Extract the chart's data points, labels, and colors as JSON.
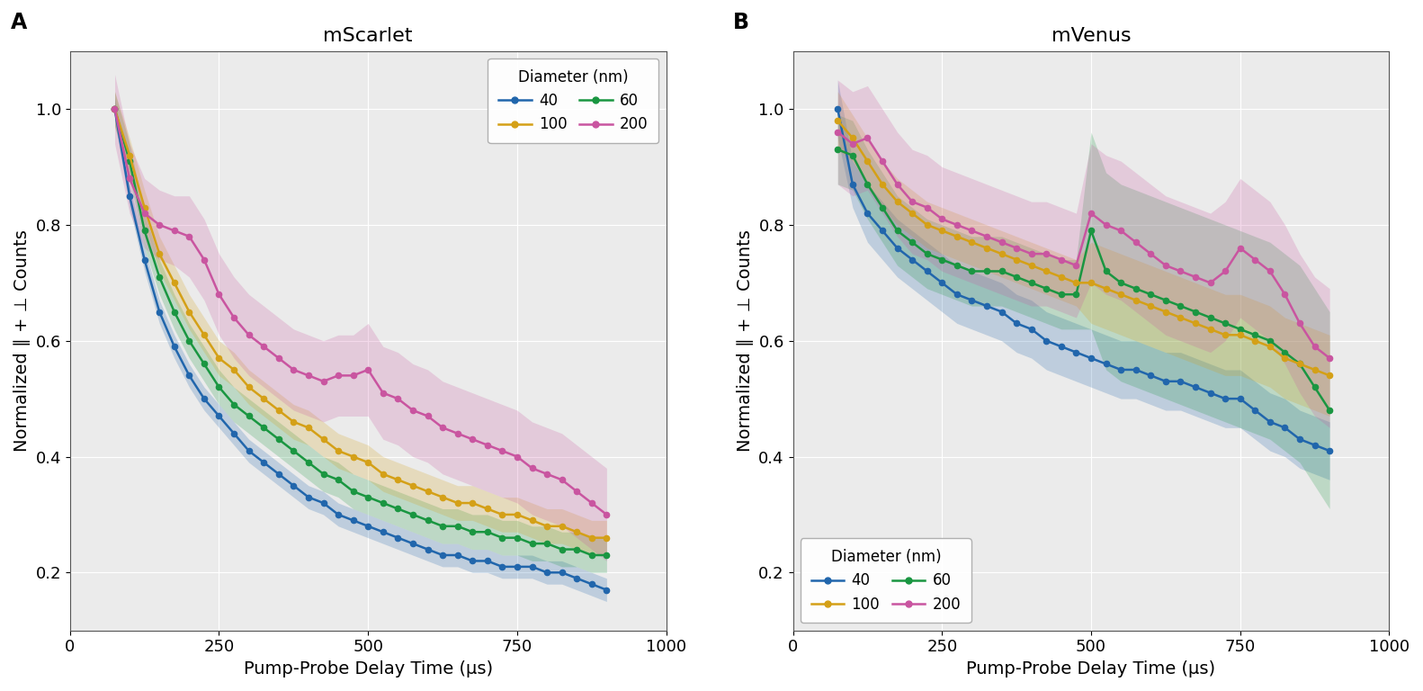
{
  "panel_A_title": "mScarlet",
  "panel_B_title": "mVenus",
  "xlabel": "Pump-Probe Delay Time (μs)",
  "ylabel": "Normalized ∥ + ⊥ Counts",
  "colors": {
    "40": "#2166ac",
    "60": "#1a9641",
    "100": "#d4a017",
    "200": "#c955a0"
  },
  "xlim": [
    0,
    1000
  ],
  "ylim": [
    0.1,
    1.1
  ],
  "yticks": [
    0.2,
    0.4,
    0.6,
    0.8,
    1.0
  ],
  "xticks": [
    0,
    250,
    500,
    750,
    1000
  ],
  "panel_A": {
    "x": [
      75,
      100,
      125,
      150,
      175,
      200,
      225,
      250,
      275,
      300,
      325,
      350,
      375,
      400,
      425,
      450,
      475,
      500,
      525,
      550,
      575,
      600,
      625,
      650,
      675,
      700,
      725,
      750,
      775,
      800,
      825,
      850,
      875,
      900
    ],
    "d40_y": [
      1.0,
      0.85,
      0.74,
      0.65,
      0.59,
      0.54,
      0.5,
      0.47,
      0.44,
      0.41,
      0.39,
      0.37,
      0.35,
      0.33,
      0.32,
      0.3,
      0.29,
      0.28,
      0.27,
      0.26,
      0.25,
      0.24,
      0.23,
      0.23,
      0.22,
      0.22,
      0.21,
      0.21,
      0.21,
      0.2,
      0.2,
      0.19,
      0.18,
      0.17
    ],
    "d40_lo": [
      0.98,
      0.83,
      0.72,
      0.63,
      0.57,
      0.52,
      0.48,
      0.45,
      0.42,
      0.39,
      0.37,
      0.35,
      0.33,
      0.31,
      0.3,
      0.28,
      0.27,
      0.26,
      0.25,
      0.24,
      0.23,
      0.22,
      0.21,
      0.21,
      0.2,
      0.2,
      0.19,
      0.19,
      0.19,
      0.18,
      0.18,
      0.17,
      0.16,
      0.15
    ],
    "d40_hi": [
      1.02,
      0.87,
      0.76,
      0.67,
      0.61,
      0.56,
      0.52,
      0.49,
      0.46,
      0.43,
      0.41,
      0.39,
      0.37,
      0.35,
      0.34,
      0.32,
      0.31,
      0.3,
      0.29,
      0.28,
      0.27,
      0.26,
      0.25,
      0.25,
      0.24,
      0.24,
      0.23,
      0.23,
      0.23,
      0.22,
      0.22,
      0.21,
      0.2,
      0.19
    ],
    "d60_y": [
      1.0,
      0.91,
      0.79,
      0.71,
      0.65,
      0.6,
      0.56,
      0.52,
      0.49,
      0.47,
      0.45,
      0.43,
      0.41,
      0.39,
      0.37,
      0.36,
      0.34,
      0.33,
      0.32,
      0.31,
      0.3,
      0.29,
      0.28,
      0.28,
      0.27,
      0.27,
      0.26,
      0.26,
      0.25,
      0.25,
      0.24,
      0.24,
      0.23,
      0.23
    ],
    "d60_lo": [
      0.97,
      0.88,
      0.76,
      0.68,
      0.62,
      0.57,
      0.53,
      0.49,
      0.46,
      0.44,
      0.42,
      0.4,
      0.38,
      0.36,
      0.34,
      0.33,
      0.31,
      0.3,
      0.29,
      0.28,
      0.27,
      0.26,
      0.25,
      0.25,
      0.24,
      0.24,
      0.23,
      0.23,
      0.22,
      0.22,
      0.21,
      0.21,
      0.2,
      0.2
    ],
    "d60_hi": [
      1.03,
      0.94,
      0.82,
      0.74,
      0.68,
      0.63,
      0.59,
      0.55,
      0.52,
      0.5,
      0.48,
      0.46,
      0.44,
      0.42,
      0.4,
      0.39,
      0.37,
      0.36,
      0.35,
      0.34,
      0.33,
      0.32,
      0.31,
      0.31,
      0.3,
      0.3,
      0.29,
      0.29,
      0.28,
      0.28,
      0.27,
      0.27,
      0.26,
      0.26
    ],
    "d100_y": [
      1.0,
      0.92,
      0.83,
      0.75,
      0.7,
      0.65,
      0.61,
      0.57,
      0.55,
      0.52,
      0.5,
      0.48,
      0.46,
      0.45,
      0.43,
      0.41,
      0.4,
      0.39,
      0.37,
      0.36,
      0.35,
      0.34,
      0.33,
      0.32,
      0.32,
      0.31,
      0.3,
      0.3,
      0.29,
      0.28,
      0.28,
      0.27,
      0.26,
      0.26
    ],
    "d100_lo": [
      0.97,
      0.89,
      0.8,
      0.72,
      0.67,
      0.62,
      0.58,
      0.54,
      0.52,
      0.49,
      0.47,
      0.45,
      0.43,
      0.42,
      0.4,
      0.38,
      0.37,
      0.36,
      0.34,
      0.33,
      0.32,
      0.31,
      0.3,
      0.29,
      0.29,
      0.28,
      0.27,
      0.27,
      0.26,
      0.25,
      0.25,
      0.24,
      0.23,
      0.23
    ],
    "d100_hi": [
      1.03,
      0.95,
      0.86,
      0.78,
      0.73,
      0.68,
      0.64,
      0.6,
      0.58,
      0.55,
      0.53,
      0.51,
      0.49,
      0.48,
      0.46,
      0.44,
      0.43,
      0.42,
      0.4,
      0.39,
      0.38,
      0.37,
      0.36,
      0.35,
      0.35,
      0.34,
      0.33,
      0.33,
      0.32,
      0.31,
      0.31,
      0.3,
      0.29,
      0.29
    ],
    "d200_y": [
      1.0,
      0.88,
      0.82,
      0.8,
      0.79,
      0.78,
      0.74,
      0.68,
      0.64,
      0.61,
      0.59,
      0.57,
      0.55,
      0.54,
      0.53,
      0.54,
      0.54,
      0.55,
      0.51,
      0.5,
      0.48,
      0.47,
      0.45,
      0.44,
      0.43,
      0.42,
      0.41,
      0.4,
      0.38,
      0.37,
      0.36,
      0.34,
      0.32,
      0.3
    ],
    "d200_lo": [
      0.94,
      0.82,
      0.76,
      0.74,
      0.73,
      0.71,
      0.67,
      0.61,
      0.57,
      0.54,
      0.52,
      0.5,
      0.48,
      0.47,
      0.46,
      0.47,
      0.47,
      0.47,
      0.43,
      0.42,
      0.4,
      0.39,
      0.37,
      0.36,
      0.35,
      0.34,
      0.33,
      0.32,
      0.3,
      0.29,
      0.28,
      0.26,
      0.24,
      0.22
    ],
    "d200_hi": [
      1.06,
      0.94,
      0.88,
      0.86,
      0.85,
      0.85,
      0.81,
      0.75,
      0.71,
      0.68,
      0.66,
      0.64,
      0.62,
      0.61,
      0.6,
      0.61,
      0.61,
      0.63,
      0.59,
      0.58,
      0.56,
      0.55,
      0.53,
      0.52,
      0.51,
      0.5,
      0.49,
      0.48,
      0.46,
      0.45,
      0.44,
      0.42,
      0.4,
      0.38
    ]
  },
  "panel_B": {
    "x": [
      75,
      100,
      125,
      150,
      175,
      200,
      225,
      250,
      275,
      300,
      325,
      350,
      375,
      400,
      425,
      450,
      475,
      500,
      525,
      550,
      575,
      600,
      625,
      650,
      675,
      700,
      725,
      750,
      775,
      800,
      825,
      850,
      875,
      900
    ],
    "d40_y": [
      1.0,
      0.87,
      0.82,
      0.79,
      0.76,
      0.74,
      0.72,
      0.7,
      0.68,
      0.67,
      0.66,
      0.65,
      0.63,
      0.62,
      0.6,
      0.59,
      0.58,
      0.57,
      0.56,
      0.55,
      0.55,
      0.54,
      0.53,
      0.53,
      0.52,
      0.51,
      0.5,
      0.5,
      0.48,
      0.46,
      0.45,
      0.43,
      0.42,
      0.41
    ],
    "d40_lo": [
      0.95,
      0.83,
      0.77,
      0.74,
      0.71,
      0.69,
      0.67,
      0.65,
      0.63,
      0.62,
      0.61,
      0.6,
      0.58,
      0.57,
      0.55,
      0.54,
      0.53,
      0.52,
      0.51,
      0.5,
      0.5,
      0.49,
      0.48,
      0.48,
      0.47,
      0.46,
      0.45,
      0.45,
      0.43,
      0.41,
      0.4,
      0.38,
      0.37,
      0.36
    ],
    "d40_hi": [
      1.05,
      0.91,
      0.87,
      0.84,
      0.81,
      0.79,
      0.77,
      0.75,
      0.73,
      0.72,
      0.71,
      0.7,
      0.68,
      0.67,
      0.65,
      0.64,
      0.63,
      0.62,
      0.61,
      0.6,
      0.6,
      0.59,
      0.58,
      0.58,
      0.57,
      0.56,
      0.55,
      0.55,
      0.53,
      0.51,
      0.5,
      0.48,
      0.47,
      0.46
    ],
    "d60_y": [
      0.93,
      0.92,
      0.87,
      0.83,
      0.79,
      0.77,
      0.75,
      0.74,
      0.73,
      0.72,
      0.72,
      0.72,
      0.71,
      0.7,
      0.69,
      0.68,
      0.68,
      0.79,
      0.72,
      0.7,
      0.69,
      0.68,
      0.67,
      0.66,
      0.65,
      0.64,
      0.63,
      0.62,
      0.61,
      0.6,
      0.58,
      0.56,
      0.52,
      0.48
    ],
    "d60_lo": [
      0.87,
      0.86,
      0.81,
      0.77,
      0.73,
      0.71,
      0.69,
      0.68,
      0.67,
      0.66,
      0.66,
      0.66,
      0.65,
      0.64,
      0.63,
      0.62,
      0.62,
      0.62,
      0.55,
      0.53,
      0.52,
      0.51,
      0.5,
      0.49,
      0.48,
      0.47,
      0.46,
      0.45,
      0.44,
      0.43,
      0.41,
      0.39,
      0.35,
      0.31
    ],
    "d60_hi": [
      0.99,
      0.98,
      0.93,
      0.89,
      0.85,
      0.83,
      0.81,
      0.8,
      0.79,
      0.78,
      0.78,
      0.78,
      0.77,
      0.76,
      0.75,
      0.74,
      0.74,
      0.96,
      0.89,
      0.87,
      0.86,
      0.85,
      0.84,
      0.83,
      0.82,
      0.81,
      0.8,
      0.79,
      0.78,
      0.77,
      0.75,
      0.73,
      0.69,
      0.65
    ],
    "d100_y": [
      0.98,
      0.95,
      0.91,
      0.87,
      0.84,
      0.82,
      0.8,
      0.79,
      0.78,
      0.77,
      0.76,
      0.75,
      0.74,
      0.73,
      0.72,
      0.71,
      0.7,
      0.7,
      0.69,
      0.68,
      0.67,
      0.66,
      0.65,
      0.64,
      0.63,
      0.62,
      0.61,
      0.61,
      0.6,
      0.59,
      0.57,
      0.56,
      0.55,
      0.54
    ],
    "d100_lo": [
      0.93,
      0.91,
      0.87,
      0.83,
      0.8,
      0.78,
      0.76,
      0.75,
      0.74,
      0.73,
      0.72,
      0.71,
      0.7,
      0.69,
      0.68,
      0.67,
      0.66,
      0.63,
      0.62,
      0.61,
      0.6,
      0.59,
      0.58,
      0.57,
      0.56,
      0.55,
      0.54,
      0.54,
      0.53,
      0.52,
      0.5,
      0.49,
      0.48,
      0.47
    ],
    "d100_hi": [
      1.03,
      0.99,
      0.95,
      0.91,
      0.88,
      0.86,
      0.84,
      0.83,
      0.82,
      0.81,
      0.8,
      0.79,
      0.78,
      0.77,
      0.76,
      0.75,
      0.74,
      0.77,
      0.76,
      0.75,
      0.74,
      0.73,
      0.72,
      0.71,
      0.7,
      0.69,
      0.68,
      0.68,
      0.67,
      0.66,
      0.64,
      0.63,
      0.62,
      0.61
    ],
    "d200_y": [
      0.96,
      0.94,
      0.95,
      0.91,
      0.87,
      0.84,
      0.83,
      0.81,
      0.8,
      0.79,
      0.78,
      0.77,
      0.76,
      0.75,
      0.75,
      0.74,
      0.73,
      0.82,
      0.8,
      0.79,
      0.77,
      0.75,
      0.73,
      0.72,
      0.71,
      0.7,
      0.72,
      0.76,
      0.74,
      0.72,
      0.68,
      0.63,
      0.59,
      0.57
    ],
    "d200_lo": [
      0.87,
      0.85,
      0.86,
      0.82,
      0.78,
      0.75,
      0.74,
      0.72,
      0.71,
      0.7,
      0.69,
      0.68,
      0.67,
      0.66,
      0.66,
      0.65,
      0.64,
      0.7,
      0.68,
      0.67,
      0.65,
      0.63,
      0.61,
      0.6,
      0.59,
      0.58,
      0.6,
      0.64,
      0.62,
      0.6,
      0.56,
      0.51,
      0.47,
      0.45
    ],
    "d200_hi": [
      1.05,
      1.03,
      1.04,
      1.0,
      0.96,
      0.93,
      0.92,
      0.9,
      0.89,
      0.88,
      0.87,
      0.86,
      0.85,
      0.84,
      0.84,
      0.83,
      0.82,
      0.94,
      0.92,
      0.91,
      0.89,
      0.87,
      0.85,
      0.84,
      0.83,
      0.82,
      0.84,
      0.88,
      0.86,
      0.84,
      0.8,
      0.75,
      0.71,
      0.69
    ]
  }
}
